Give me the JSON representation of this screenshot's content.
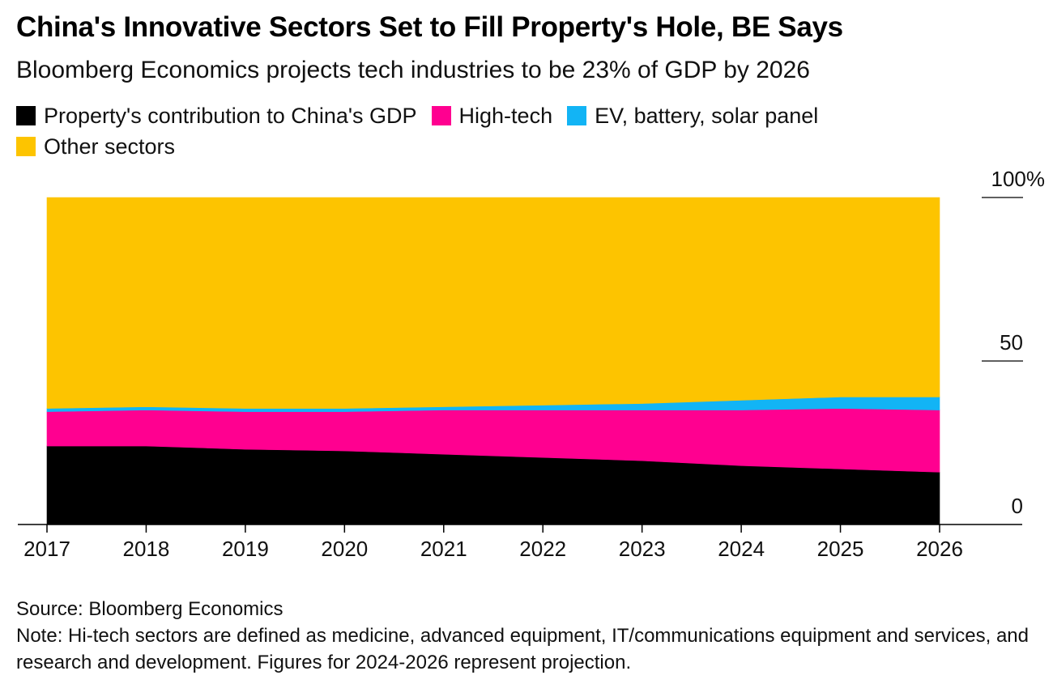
{
  "title": "China's Innovative Sectors Set to Fill Property's Hole, BE Says",
  "subtitle": "Bloomberg Economics projects tech industries to be 23% of GDP by 2026",
  "source": "Source: Bloomberg Economics",
  "note": "Note: Hi-tech sectors are defined as medicine, advanced equipment, IT/communications equipment and services, and research and development. Figures for 2024-2026 represent projection.",
  "colors": {
    "property": "#000000",
    "hightech": "#ff0090",
    "ev": "#12b4f5",
    "other": "#fdc400"
  },
  "chart_data": {
    "type": "area",
    "stacked": true,
    "x": [
      "2017",
      "2018",
      "2019",
      "2020",
      "2021",
      "2022",
      "2023",
      "2024",
      "2025",
      "2026"
    ],
    "ylim": [
      0,
      100
    ],
    "yticks": [
      {
        "value": 0,
        "label": "0"
      },
      {
        "value": 50,
        "label": "50"
      },
      {
        "value": 100,
        "label": "100%"
      }
    ],
    "y_axis_position": "right",
    "legend_position": "top",
    "grid": false,
    "series": [
      {
        "name": "Property's contribution to China's GDP",
        "color_key": "property",
        "values": [
          24,
          24,
          23,
          22.5,
          21.5,
          20.5,
          19.5,
          18,
          17,
          16
        ]
      },
      {
        "name": "High-tech",
        "color_key": "hightech",
        "values": [
          10.5,
          11,
          11.5,
          12,
          13.5,
          14.5,
          15.5,
          17,
          18.5,
          19
        ]
      },
      {
        "name": "EV, battery, solar panel",
        "color_key": "ev",
        "values": [
          1,
          1,
          1,
          1,
          1,
          1.5,
          2,
          3,
          3.5,
          4
        ]
      },
      {
        "name": "Other sectors",
        "color_key": "other",
        "values": [
          64.5,
          64,
          64.5,
          64.5,
          64,
          63.5,
          63,
          62,
          61,
          61
        ]
      }
    ]
  }
}
